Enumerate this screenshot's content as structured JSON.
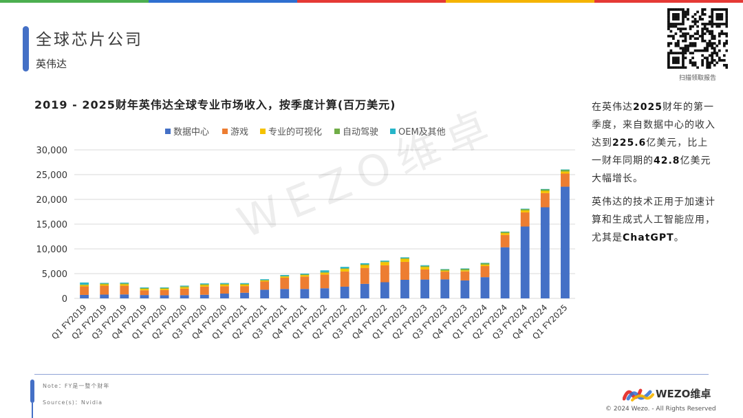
{
  "header": {
    "title": "全球芯片公司",
    "subtitle": "英伟达",
    "qr_caption": "扫描领取报告"
  },
  "colors": {
    "accent": "#4470c6",
    "topbar": [
      "#4caf50",
      "#2f6fd0",
      "#e53935",
      "#f5b400",
      "#e53935"
    ]
  },
  "side": {
    "p1": [
      "在英伟达",
      "2025",
      "财年的第一季度，来自数据中心的收入达到",
      "225.6",
      "亿美元，比上一财年同期的",
      "42.8",
      "亿美元大幅增长。"
    ],
    "p2": [
      "英伟达的技术正用于加速计算和生成式人工智能应用，尤其是",
      "ChatGPT",
      "。"
    ]
  },
  "watermark": "WEZO维卓",
  "footer": {
    "note": "Note：FY是一整个财年",
    "source": "Source(s)：Nvidia",
    "logo_text": "WEZO维卓",
    "copyright": "© 2024 Wezo. - All Rights Reserved"
  },
  "chart_data": {
    "type": "bar",
    "stacked": true,
    "title": "2019 - 2025财年英伟达全球专业市场收入，按季度计算(百万美元)",
    "categories": [
      "Q1 FY2019",
      "Q2 FY2019",
      "Q3 FY2019",
      "Q4 FY2019",
      "Q1 FY2020",
      "Q2 FY2020",
      "Q3 FY2020",
      "Q4 FY2020",
      "Q1 FY2021",
      "Q2 FY2021",
      "Q3 FY2021",
      "Q4 FY2021",
      "Q1 FY2022",
      "Q2 FY2022",
      "Q3 FY2022",
      "Q4 FY2022",
      "Q1 FY2023",
      "Q2 FY2023",
      "Q3 FY2023",
      "Q4 FY2023",
      "Q1 FY2024",
      "Q2 FY2024",
      "Q3 FY2024",
      "Q4 FY2024",
      "Q1 FY2025"
    ],
    "series": [
      {
        "name": "数据中心",
        "color": "#4470c6",
        "values": [
          701,
          760,
          792,
          679,
          634,
          655,
          726,
          968,
          1141,
          1752,
          1900,
          1903,
          2048,
          2366,
          2936,
          3263,
          3750,
          3806,
          3833,
          3616,
          4284,
          10323,
          14514,
          18404,
          22563
        ]
      },
      {
        "name": "游戏",
        "color": "#ed7d31",
        "values": [
          1723,
          1805,
          1764,
          954,
          1055,
          1313,
          1659,
          1491,
          1339,
          1654,
          2271,
          2495,
          2760,
          3061,
          3221,
          3420,
          3620,
          2042,
          1574,
          1831,
          2240,
          2486,
          2856,
          2865,
          2647
        ]
      },
      {
        "name": "专业的可视化",
        "color": "#f5c200",
        "values": [
          251,
          281,
          305,
          293,
          266,
          291,
          324,
          331,
          307,
          203,
          236,
          307,
          372,
          519,
          577,
          643,
          622,
          496,
          200,
          226,
          295,
          379,
          416,
          463,
          427
        ]
      },
      {
        "name": "自动驾驶",
        "color": "#70ad47",
        "values": [
          145,
          161,
          172,
          163,
          166,
          209,
          162,
          163,
          155,
          111,
          125,
          145,
          154,
          152,
          135,
          125,
          138,
          220,
          251,
          294,
          296,
          253,
          261,
          281,
          329
        ]
      },
      {
        "name": "OEM及其他",
        "color": "#26b5c9",
        "values": [
          387,
          116,
          148,
          116,
          99,
          111,
          152,
          152,
          145,
          146,
          194,
          153,
          327,
          266,
          234,
          174,
          158,
          140,
          73,
          84,
          77,
          66,
          73,
          90,
          78
        ]
      }
    ],
    "ylim": [
      0,
      30000
    ],
    "yticks": [
      0,
      5000,
      10000,
      15000,
      20000,
      25000,
      30000
    ],
    "ytick_labels": [
      "0",
      "5,000",
      "10,000",
      "15,000",
      "20,000",
      "25,000",
      "30,000"
    ],
    "legend_position": "top",
    "grid": true
  }
}
